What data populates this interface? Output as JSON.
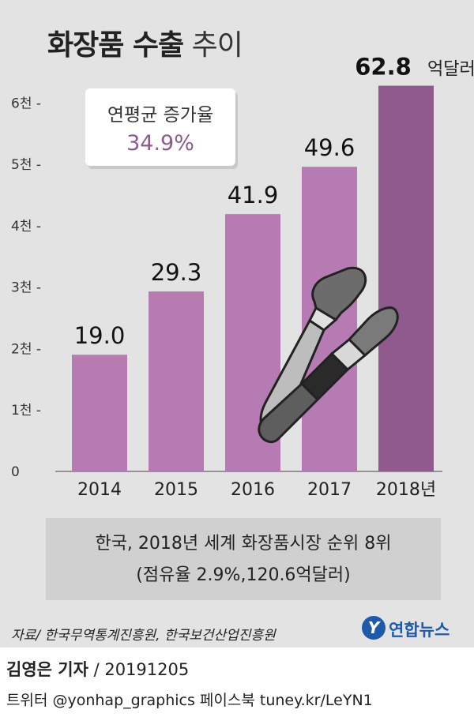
{
  "title": {
    "bold": "화장품 수출",
    "light": "추이"
  },
  "cagr": {
    "label": "연평균 증가율",
    "value": "34.9%"
  },
  "chart_data": {
    "type": "bar",
    "categories": [
      "2014",
      "2015",
      "2016",
      "2017",
      "2018년"
    ],
    "values": [
      19.0,
      29.3,
      41.9,
      49.6,
      62.8
    ],
    "data_labels": [
      "19.0",
      "29.3",
      "41.9",
      "49.6",
      "62.8"
    ],
    "unit_label": "억달러",
    "y_ticks": [
      0,
      10,
      20,
      30,
      40,
      50,
      60
    ],
    "y_tick_labels": [
      "0",
      "1천 -",
      "2천 -",
      "3천 -",
      "4천 -",
      "5천 -",
      "6천 -"
    ],
    "ylim": [
      0,
      63
    ],
    "bar_colors": [
      "#b77bb3",
      "#b77bb3",
      "#b77bb3",
      "#b77bb3",
      "#8f5a8d"
    ]
  },
  "info": {
    "line1": "한국, 2018년 세계 화장품시장 순위 8위",
    "line2": "(점유율 2.9%,120.6억달러)"
  },
  "source": "자료/ 한국무역통계진흥원, 한국보건산업진흥원",
  "logo": {
    "mark": "Y",
    "text": "연합뉴스"
  },
  "credit": {
    "reporter": "김영은 기자",
    "date": " / 20191205",
    "social": "트위터 @yonhap_graphics  페이스북 tuney.kr/LeYN1"
  },
  "icons": [
    "makeup-brush-icon",
    "lipstick-icon"
  ]
}
